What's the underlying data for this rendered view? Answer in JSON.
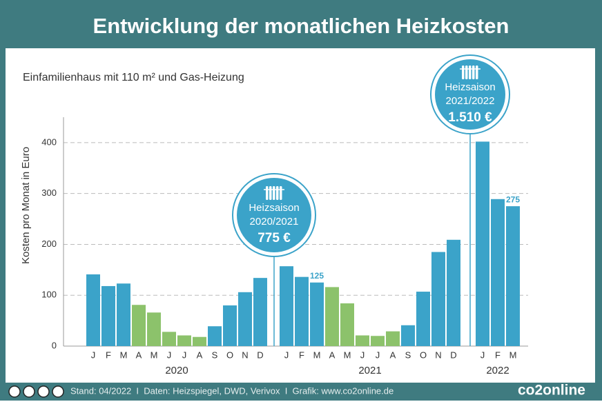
{
  "header": {
    "title": "Entwicklung der monatlichen Heizkosten"
  },
  "chart_data": {
    "type": "bar",
    "subtitle": "Einfamilienhaus mit 110 m² und Gas-Heizung",
    "y_label": "Kosten pro Monat in Euro",
    "ylim": [
      0,
      450
    ],
    "yticks": [
      0,
      100,
      200,
      300,
      400
    ],
    "grid": true,
    "periods": [
      {
        "label": "2020",
        "categories": [
          "J",
          "F",
          "M",
          "A",
          "M",
          "J",
          "J",
          "A",
          "S",
          "O",
          "N",
          "D"
        ],
        "values": [
          141,
          118,
          123,
          81,
          66,
          28,
          21,
          18,
          39,
          80,
          106,
          134
        ],
        "colors": [
          "#3ba3c9",
          "#3ba3c9",
          "#3ba3c9",
          "#8cc26b",
          "#8cc26b",
          "#8cc26b",
          "#8cc26b",
          "#8cc26b",
          "#3ba3c9",
          "#3ba3c9",
          "#3ba3c9",
          "#3ba3c9"
        ],
        "value_labels": [
          null,
          null,
          null,
          null,
          null,
          null,
          null,
          null,
          null,
          null,
          null,
          null
        ]
      },
      {
        "label": "2021",
        "categories": [
          "J",
          "F",
          "M",
          "A",
          "M",
          "J",
          "J",
          "A",
          "S",
          "O",
          "N",
          "D"
        ],
        "values": [
          157,
          136,
          125,
          116,
          84,
          21,
          20,
          29,
          41,
          107,
          185,
          209
        ],
        "colors": [
          "#3ba3c9",
          "#3ba3c9",
          "#3ba3c9",
          "#8cc26b",
          "#8cc26b",
          "#8cc26b",
          "#8cc26b",
          "#8cc26b",
          "#3ba3c9",
          "#3ba3c9",
          "#3ba3c9",
          "#3ba3c9"
        ],
        "value_labels": [
          null,
          null,
          "125",
          null,
          null,
          null,
          null,
          null,
          null,
          null,
          null,
          null
        ],
        "season_callout": {
          "title": "Heizsaison",
          "season": "2020/2021",
          "total": "775 €"
        }
      },
      {
        "label": "2022",
        "categories": [
          "J",
          "F",
          "M"
        ],
        "values": [
          402,
          289,
          275
        ],
        "colors": [
          "#3ba3c9",
          "#3ba3c9",
          "#3ba3c9"
        ],
        "value_labels": [
          null,
          null,
          "275"
        ],
        "season_callout": {
          "title": "Heizsaison",
          "season": "2021/2022",
          "total": "1.510 €"
        }
      }
    ]
  },
  "footer": {
    "source": "Stand: 04/2022  I  Daten: Heizspiegel, DWD, Verivox  I  Grafik: www.co2online.de",
    "logo": "co2online"
  }
}
